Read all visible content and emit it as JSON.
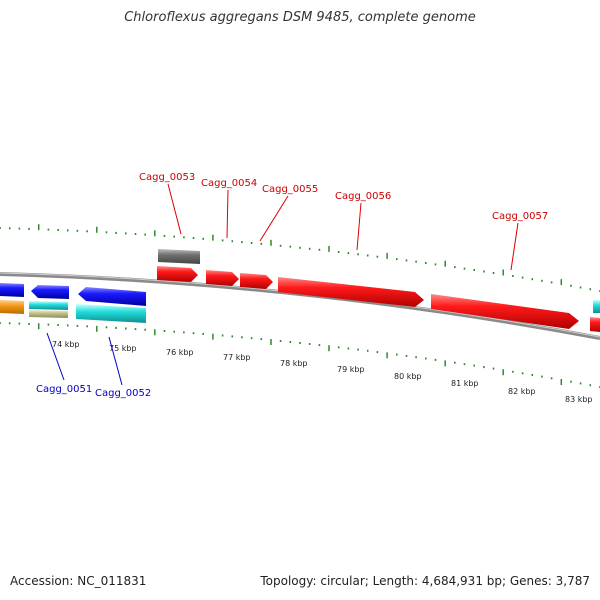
{
  "title": "Chloroflexus aggregans DSM 9485, complete genome",
  "footer": {
    "accession": "Accession: NC_011831",
    "topology": "Topology: circular; Length: 4,684,931 bp; Genes: 3,787"
  },
  "colors": {
    "forward_gene": "#ee0000",
    "reverse_gene": "#1a1aee",
    "backbone": "#8a8a8a",
    "tick": "#2e8b2e",
    "label_forward": "#cc0000",
    "label_reverse": "#0000cc",
    "cyan": "#22dddd",
    "orange": "#f59a1a",
    "gray": "#707070"
  },
  "scale_labels": [
    "74 kbp",
    "75 kbp",
    "76 kbp",
    "77 kbp",
    "78 kbp",
    "79 kbp",
    "80 kbp",
    "81 kbp",
    "82 kbp",
    "83 kbp"
  ],
  "gene_labels_forward": [
    "Cagg_0053",
    "Cagg_0054",
    "Cagg_0055",
    "Cagg_0056",
    "Cagg_0057"
  ],
  "gene_labels_reverse": [
    "Cagg_0051",
    "Cagg_0052"
  ]
}
